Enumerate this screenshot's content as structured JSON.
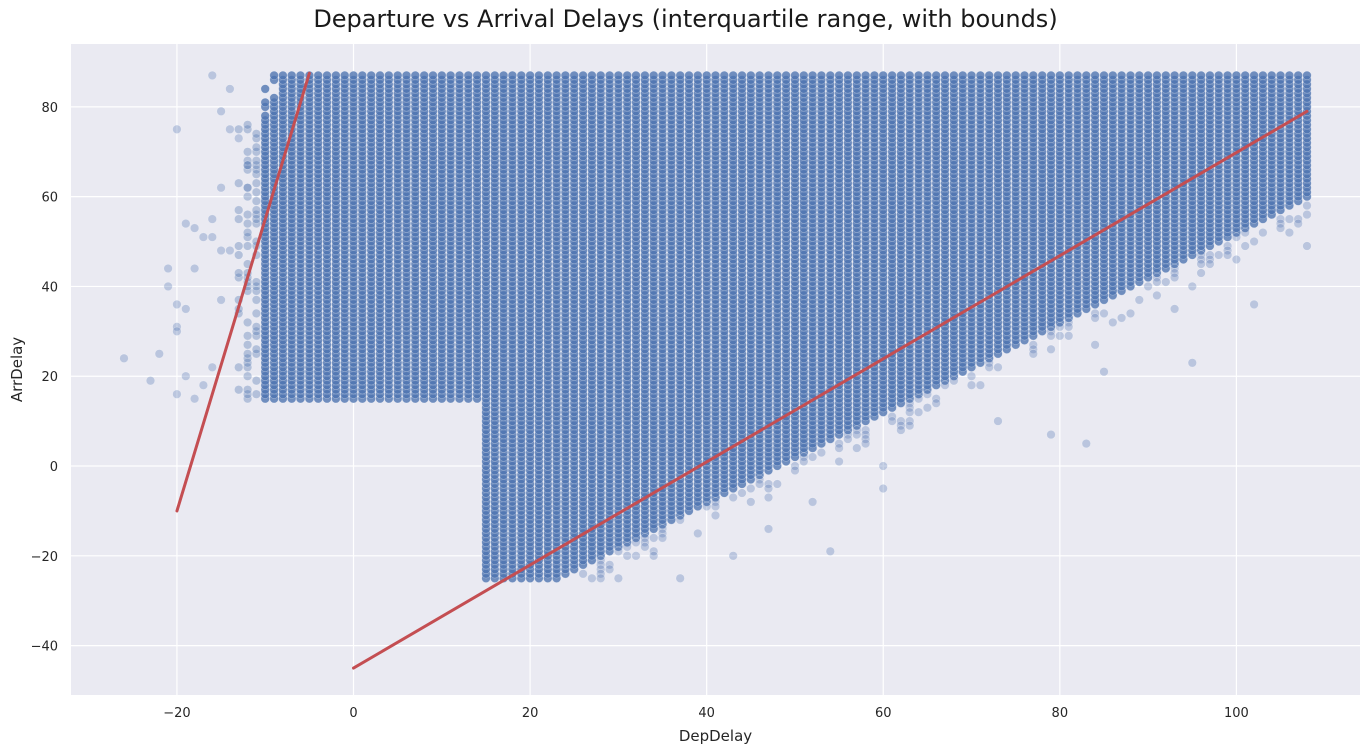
{
  "chart_data": {
    "type": "scatter",
    "title": "Departure vs Arrival Delays (interquartile range, with bounds)",
    "xlabel": "DepDelay",
    "ylabel": "ArrDelay",
    "xlim": [
      -32,
      114
    ],
    "ylim": [
      -51,
      94
    ],
    "xticks": [
      -20,
      0,
      20,
      40,
      60,
      80,
      100
    ],
    "yticks": [
      -40,
      -20,
      0,
      20,
      40,
      60,
      80
    ],
    "grid": true,
    "background": "#eaeaf2",
    "point_color": "#4c72b0",
    "line_color": "#c44e52",
    "scatter_regions": [
      {
        "dep_range": [
          -10,
          14
        ],
        "arr_range": [
          15,
          87
        ]
      },
      {
        "dep_range": [
          15,
          108
        ],
        "arr_range": [
          -25,
          87
        ],
        "lower_bound": "arr >= dep - 48"
      }
    ],
    "sparse_points": [
      {
        "x": -26,
        "y": 24
      },
      {
        "x": -23,
        "y": 19
      },
      {
        "x": -22,
        "y": 25
      },
      {
        "x": -21,
        "y": 44
      },
      {
        "x": -21,
        "y": 40
      },
      {
        "x": -20,
        "y": 75
      },
      {
        "x": -20,
        "y": 36
      },
      {
        "x": -20,
        "y": 31
      },
      {
        "x": -20,
        "y": 30
      },
      {
        "x": -20,
        "y": 16
      },
      {
        "x": -19,
        "y": 54
      },
      {
        "x": -19,
        "y": 35
      },
      {
        "x": -19,
        "y": 20
      },
      {
        "x": -18,
        "y": 53
      },
      {
        "x": -18,
        "y": 44
      },
      {
        "x": -18,
        "y": 15
      },
      {
        "x": -17,
        "y": 51
      },
      {
        "x": -17,
        "y": 18
      },
      {
        "x": -16,
        "y": 87
      },
      {
        "x": -16,
        "y": 55
      },
      {
        "x": -16,
        "y": 51
      },
      {
        "x": -16,
        "y": 22
      },
      {
        "x": -15,
        "y": 79
      },
      {
        "x": -15,
        "y": 62
      },
      {
        "x": -15,
        "y": 48
      },
      {
        "x": -15,
        "y": 37
      },
      {
        "x": -14,
        "y": 84
      },
      {
        "x": -14,
        "y": 75
      },
      {
        "x": -14,
        "y": 48
      },
      {
        "x": -13,
        "y": 73
      },
      {
        "x": -12,
        "y": 67
      },
      {
        "x": -12,
        "y": 62
      },
      {
        "x": 60,
        "y": -5
      },
      {
        "x": 60,
        "y": 0
      },
      {
        "x": 54,
        "y": -19
      },
      {
        "x": 52,
        "y": -8
      },
      {
        "x": 79,
        "y": 7
      },
      {
        "x": 83,
        "y": 5
      },
      {
        "x": 85,
        "y": 21
      },
      {
        "x": 73,
        "y": 10
      },
      {
        "x": 95,
        "y": 23
      },
      {
        "x": 102,
        "y": 36
      },
      {
        "x": 108,
        "y": 49
      },
      {
        "x": 95,
        "y": 40
      },
      {
        "x": 93,
        "y": 35
      },
      {
        "x": 88,
        "y": 34
      },
      {
        "x": 84,
        "y": 27
      },
      {
        "x": 43,
        "y": -20
      },
      {
        "x": 37,
        "y": -25
      },
      {
        "x": 30,
        "y": -25
      },
      {
        "x": 47,
        "y": -14
      }
    ],
    "bound_lines": [
      {
        "x": [
          -20,
          -5
        ],
        "y": [
          -10,
          87.5
        ]
      },
      {
        "x": [
          0,
          108
        ],
        "y": [
          -45,
          79
        ]
      }
    ]
  }
}
